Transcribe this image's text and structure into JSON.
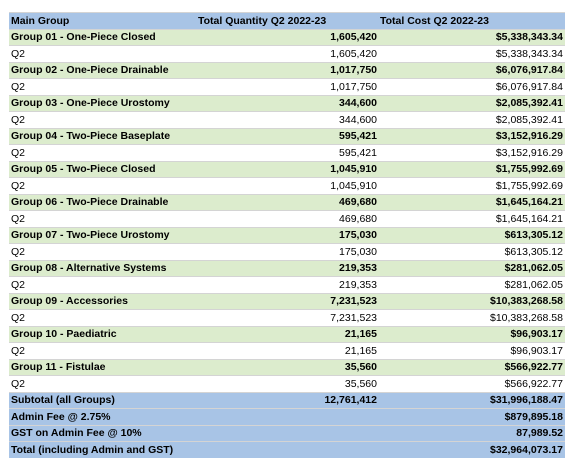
{
  "headers": {
    "group": "Main Group",
    "quantity": "Total Quantity Q2 2022-23",
    "cost": "Total Cost Q2 2022-23"
  },
  "rows": [
    {
      "label": "Group 01 - One-Piece Closed",
      "qty": "1,605,420",
      "cost": "$5,338,343.34",
      "type": "group"
    },
    {
      "label": "Q2",
      "qty": "1,605,420",
      "cost": "$5,338,343.34",
      "type": "detail"
    },
    {
      "label": "Group 02 - One-Piece Drainable",
      "qty": "1,017,750",
      "cost": "$6,076,917.84",
      "type": "group"
    },
    {
      "label": "Q2",
      "qty": "1,017,750",
      "cost": "$6,076,917.84",
      "type": "detail"
    },
    {
      "label": "Group 03 - One-Piece Urostomy",
      "qty": "344,600",
      "cost": "$2,085,392.41",
      "type": "group"
    },
    {
      "label": "Q2",
      "qty": "344,600",
      "cost": "$2,085,392.41",
      "type": "detail"
    },
    {
      "label": "Group 04 - Two-Piece Baseplate",
      "qty": "595,421",
      "cost": "$3,152,916.29",
      "type": "group"
    },
    {
      "label": "Q2",
      "qty": "595,421",
      "cost": "$3,152,916.29",
      "type": "detail"
    },
    {
      "label": "Group 05 - Two-Piece Closed",
      "qty": "1,045,910",
      "cost": "$1,755,992.69",
      "type": "group"
    },
    {
      "label": "Q2",
      "qty": "1,045,910",
      "cost": "$1,755,992.69",
      "type": "detail"
    },
    {
      "label": "Group 06 - Two-Piece Drainable",
      "qty": "469,680",
      "cost": "$1,645,164.21",
      "type": "group"
    },
    {
      "label": "Q2",
      "qty": "469,680",
      "cost": "$1,645,164.21",
      "type": "detail"
    },
    {
      "label": "Group 07 - Two-Piece Urostomy",
      "qty": "175,030",
      "cost": "$613,305.12",
      "type": "group"
    },
    {
      "label": "Q2",
      "qty": "175,030",
      "cost": "$613,305.12",
      "type": "detail"
    },
    {
      "label": "Group 08 - Alternative Systems",
      "qty": "219,353",
      "cost": "$281,062.05",
      "type": "group"
    },
    {
      "label": "Q2",
      "qty": "219,353",
      "cost": "$281,062.05",
      "type": "detail"
    },
    {
      "label": "Group 09 - Accessories",
      "qty": "7,231,523",
      "cost": "$10,383,268.58",
      "type": "group"
    },
    {
      "label": "Q2",
      "qty": "7,231,523",
      "cost": "$10,383,268.58",
      "type": "detail"
    },
    {
      "label": "Group 10 - Paediatric",
      "qty": "21,165",
      "cost": "$96,903.17",
      "type": "group"
    },
    {
      "label": "Q2",
      "qty": "21,165",
      "cost": "$96,903.17",
      "type": "detail"
    },
    {
      "label": "Group 11 - Fistulae",
      "qty": "35,560",
      "cost": "$566,922.77",
      "type": "group"
    },
    {
      "label": "Q2",
      "qty": "35,560",
      "cost": "$566,922.77",
      "type": "detail"
    },
    {
      "label": "Subtotal (all Groups)",
      "qty": "12,761,412",
      "cost": "$31,996,188.47",
      "type": "total"
    },
    {
      "label": "Admin Fee @ 2.75%",
      "qty": "",
      "cost": "$879,895.18",
      "type": "total"
    },
    {
      "label": "GST on Admin Fee @ 10%",
      "qty": "",
      "cost": "87,989.52",
      "type": "total"
    },
    {
      "label": "Total (including Admin and GST)",
      "qty": "",
      "cost": "$32,964,073.17",
      "type": "total"
    }
  ]
}
